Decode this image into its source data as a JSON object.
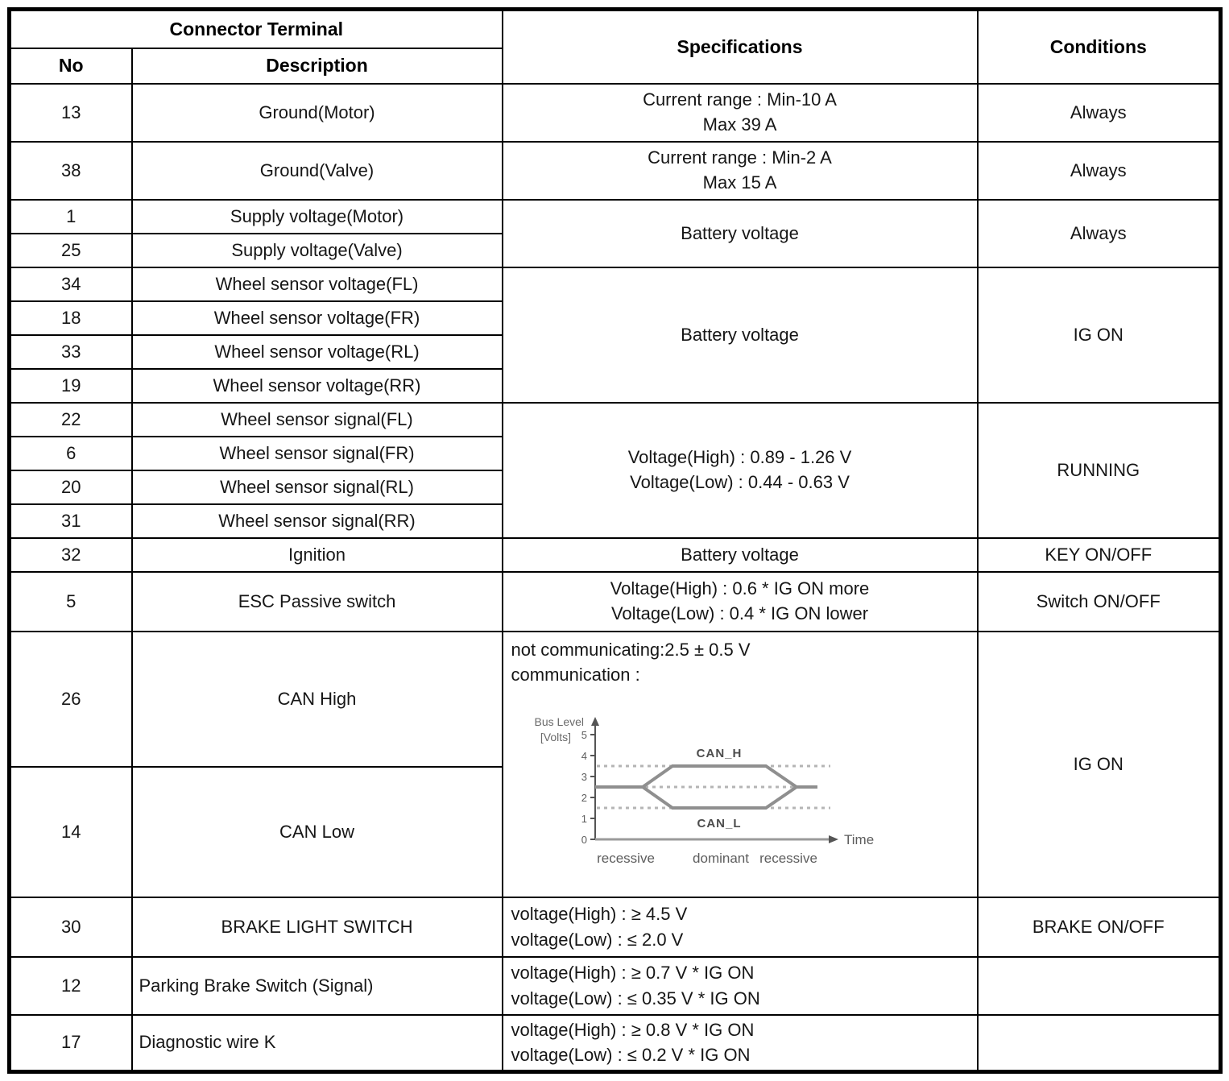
{
  "table": {
    "header": {
      "connector_terminal": "Connector Terminal",
      "no": "No",
      "description": "Description",
      "specifications": "Specifications",
      "conditions": "Conditions"
    },
    "rows": [
      {
        "no": "13",
        "desc": "Ground(Motor)",
        "spec_lines": [
          "Current range : Min-10 A",
          "Max 39 A"
        ],
        "cond": "Always"
      },
      {
        "no": "38",
        "desc": "Ground(Valve)",
        "spec_lines": [
          "Current range : Min-2 A",
          "Max 15 A"
        ],
        "cond": "Always"
      },
      {
        "no": "1",
        "desc": "Supply voltage(Motor)",
        "spec": "Battery voltage",
        "cond": "Always"
      },
      {
        "no": "25",
        "desc": "Supply voltage(Valve)"
      },
      {
        "no": "34",
        "desc": "Wheel sensor voltage(FL)",
        "spec": "Battery voltage",
        "cond": "IG ON"
      },
      {
        "no": "18",
        "desc": "Wheel sensor voltage(FR)"
      },
      {
        "no": "33",
        "desc": "Wheel sensor voltage(RL)"
      },
      {
        "no": "19",
        "desc": "Wheel sensor voltage(RR)"
      },
      {
        "no": "22",
        "desc": "Wheel sensor signal(FL)",
        "spec_lines": [
          "Voltage(High) : 0.89 - 1.26 V",
          "Voltage(Low) : 0.44 - 0.63 V"
        ],
        "cond": "RUNNING"
      },
      {
        "no": "6",
        "desc": "Wheel sensor signal(FR)"
      },
      {
        "no": "20",
        "desc": "Wheel sensor signal(RL)"
      },
      {
        "no": "31",
        "desc": "Wheel sensor signal(RR)"
      },
      {
        "no": "32",
        "desc": "Ignition",
        "spec": "Battery voltage",
        "cond": "KEY ON/OFF"
      },
      {
        "no": "5",
        "desc": "ESC Passive switch",
        "spec_lines": [
          "Voltage(High) : 0.6 * IG ON more",
          "Voltage(Low) : 0.4 * IG ON lower"
        ],
        "cond": "Switch ON/OFF"
      },
      {
        "no": "26",
        "desc": "CAN High",
        "spec_lines": [
          "not communicating:2.5 ± 0.5 V",
          "communication :"
        ],
        "cond": "IG ON"
      },
      {
        "no": "14",
        "desc": "CAN Low"
      },
      {
        "no": "30",
        "desc": "BRAKE LIGHT SWITCH",
        "spec_lines": [
          "voltage(High) : ≥ 4.5 V",
          "voltage(Low) : ≤ 2.0 V"
        ],
        "cond": "BRAKE ON/OFF"
      },
      {
        "no": "12",
        "desc": "Parking Brake Switch (Signal)",
        "spec_lines": [
          "voltage(High) : ≥ 0.7 V * IG ON",
          "voltage(Low) : ≤ 0.35 V * IG ON"
        ],
        "cond": ""
      },
      {
        "no": "17",
        "desc": "Diagnostic wire K",
        "spec_lines": [
          "voltage(High) : ≥ 0.8 V * IG ON",
          "voltage(Low) : ≤ 0.2 V * IG ON"
        ],
        "cond": ""
      }
    ]
  },
  "can_diagram": {
    "chart_data": {
      "type": "line",
      "ylabel_lines": [
        "Bus Level",
        "[Volts]"
      ],
      "xlabel": "Time",
      "yticks": [
        0,
        1,
        2,
        3,
        4,
        5
      ],
      "ylim": [
        0,
        5
      ],
      "series": [
        {
          "name": "CAN_H",
          "recessive_level": 2.5,
          "dominant_level": 3.5
        },
        {
          "name": "CAN_L",
          "recessive_level": 2.5,
          "dominant_level": 1.5
        }
      ],
      "dotted_levels": [
        3.5,
        2.5,
        1.5
      ],
      "phase_labels": [
        "recessive",
        "dominant",
        "recessive"
      ],
      "trace_color": "#8f8f8f",
      "dotted_color": "#b5b5b5",
      "axis_color": "#555555"
    }
  }
}
